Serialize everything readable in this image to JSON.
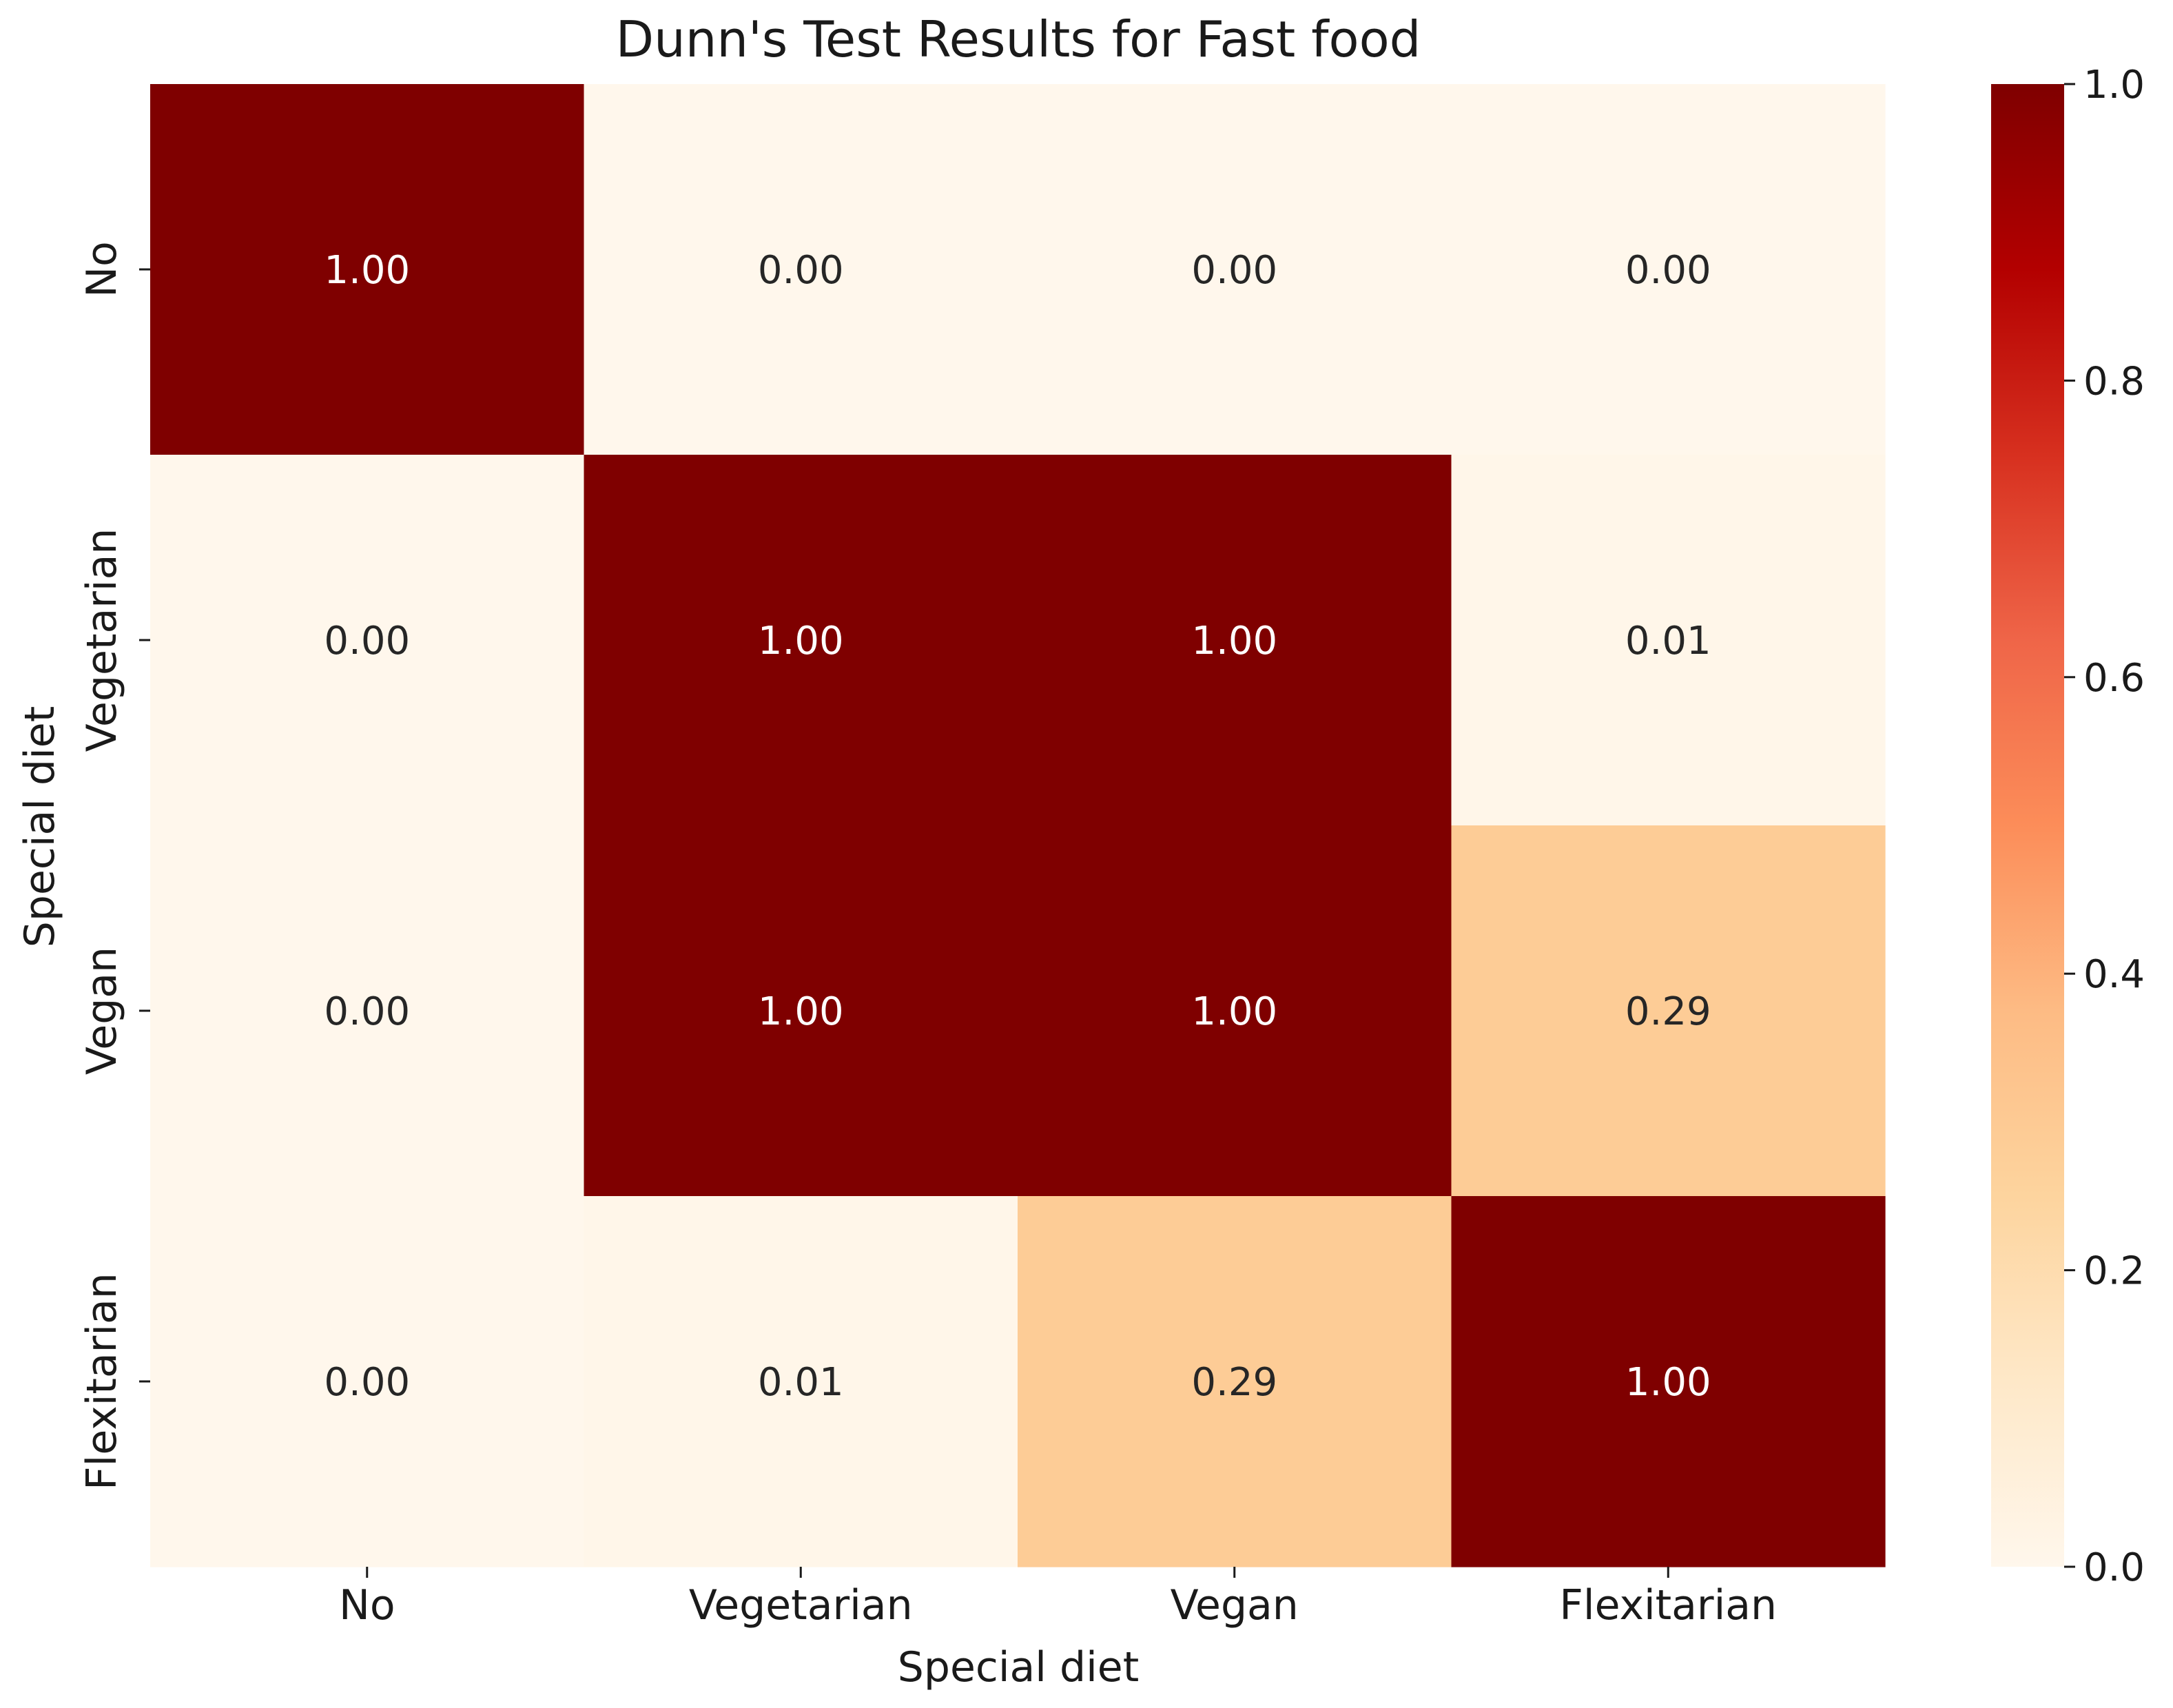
{
  "chart_data": {
    "type": "heatmap",
    "title": "Dunn's Test Results for Fast food",
    "xlabel": "Special diet",
    "ylabel": "Special diet",
    "x_categories": [
      "No",
      "Vegetarian",
      "Vegan",
      "Flexitarian"
    ],
    "y_categories": [
      "No",
      "Vegetarian",
      "Vegan",
      "Flexitarian"
    ],
    "values": [
      [
        1.0,
        0.0,
        0.0,
        0.0
      ],
      [
        0.0,
        1.0,
        1.0,
        0.01
      ],
      [
        0.0,
        1.0,
        1.0,
        0.29
      ],
      [
        0.0,
        0.01,
        0.29,
        1.0
      ]
    ],
    "value_format": "0.00",
    "colormap": "OrRd",
    "colormap_stops": [
      "#fff7ec",
      "#fee8c8",
      "#fdd49e",
      "#fdbb84",
      "#fc8d59",
      "#ef6548",
      "#d7301f",
      "#b30000",
      "#7f0000"
    ],
    "vmin": 0.0,
    "vmax": 1.0,
    "colorbar_ticks": [
      "0.0",
      "0.2",
      "0.4",
      "0.6",
      "0.8",
      "1.0"
    ],
    "annotation_colors": {
      "dark": "#262626",
      "light": "#ffffff"
    }
  }
}
